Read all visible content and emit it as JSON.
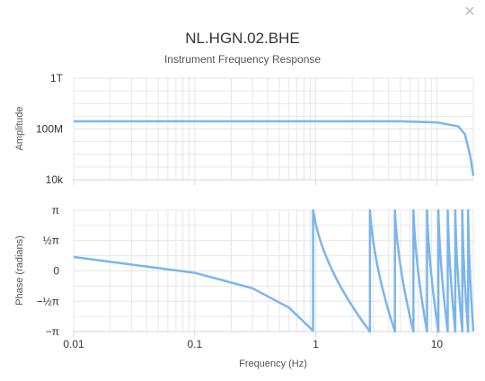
{
  "close_icon": "×",
  "chart_data": {
    "type": "line",
    "title": "NL.HGN.02.BHE",
    "subtitle": "Instrument Frequency Response",
    "color": "#7cb5ec",
    "x_axis": {
      "label": "Frequency (Hz)",
      "scale": "log",
      "range": [
        0.01,
        20
      ],
      "ticks": [
        0.01,
        0.1,
        1,
        10
      ],
      "tick_labels": [
        "0.01",
        "0.1",
        "1",
        "10"
      ]
    },
    "amplitude": {
      "ylabel": "Amplitude",
      "scale": "log",
      "ylim": [
        10000,
        1000000000000
      ],
      "ticks": [
        10000,
        100000000,
        1000000000000
      ],
      "tick_labels": [
        "10k",
        "100M",
        "1T"
      ],
      "x": [
        0.01,
        0.1,
        1,
        5,
        10,
        15,
        17,
        18,
        19,
        20
      ],
      "y": [
        400000000,
        400000000,
        400000000,
        400000000,
        330000000,
        160000000,
        40000000,
        5000000,
        500000,
        20000
      ]
    },
    "phase": {
      "ylabel": "Phase (radians)",
      "ylim": [
        -3.14159,
        3.14159
      ],
      "ticks": [
        3.14159,
        1.5708,
        0,
        -1.5708,
        -3.14159
      ],
      "tick_labels": [
        "π",
        "½π",
        "0",
        "−½π",
        "−π"
      ],
      "wraps_at": [
        0.95,
        2.8,
        4.5,
        6.4,
        8.3,
        10.3,
        12.3,
        14.2,
        16.2,
        18.1,
        20
      ],
      "points": [
        [
          0.01,
          0.72
        ],
        [
          0.1,
          -0.1
        ],
        [
          0.3,
          -0.9
        ],
        [
          0.6,
          -1.9
        ],
        [
          0.95,
          -3.1
        ]
      ]
    }
  }
}
